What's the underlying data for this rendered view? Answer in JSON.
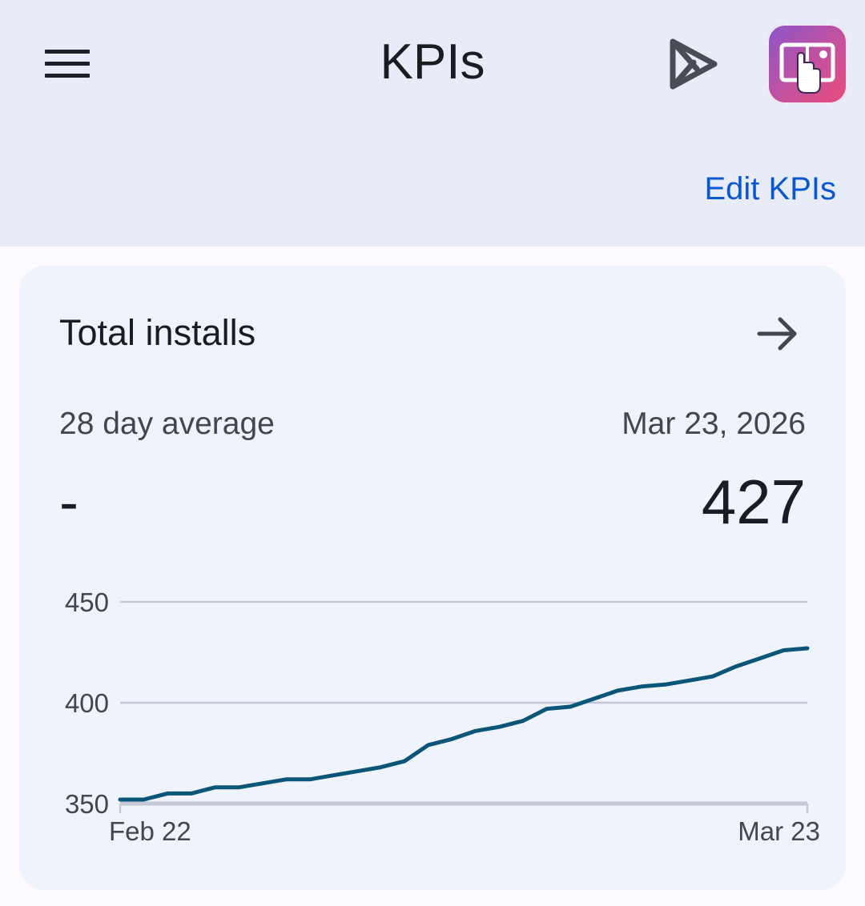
{
  "header": {
    "title": "KPIs",
    "edit_link": "Edit KPIs"
  },
  "card": {
    "title": "Total installs",
    "subtitle": "28 day average",
    "avg_value": "-",
    "date": "Mar 23, 2026",
    "value": "427"
  },
  "colors": {
    "header_bg": "#e8ecf9",
    "card_bg": "#eff3fc",
    "link": "#0b57d0",
    "line": "#0b5578",
    "grid": "#c4c7d5"
  },
  "icons": [
    "menu-icon",
    "play-console-icon",
    "app-icon",
    "arrow-right-icon"
  ],
  "chart_data": {
    "type": "line",
    "x_tick_labels": [
      "Feb 22",
      "Mar 23"
    ],
    "y_ticks": [
      350,
      400,
      450
    ],
    "ylim": [
      350,
      450
    ],
    "grid": true,
    "series": [
      {
        "values": [
          352,
          352,
          355,
          355,
          358,
          358,
          360,
          362,
          362,
          364,
          366,
          368,
          371,
          379,
          382,
          386,
          388,
          391,
          397,
          398,
          402,
          406,
          408,
          409,
          411,
          413,
          418,
          422,
          426,
          427
        ]
      }
    ]
  }
}
